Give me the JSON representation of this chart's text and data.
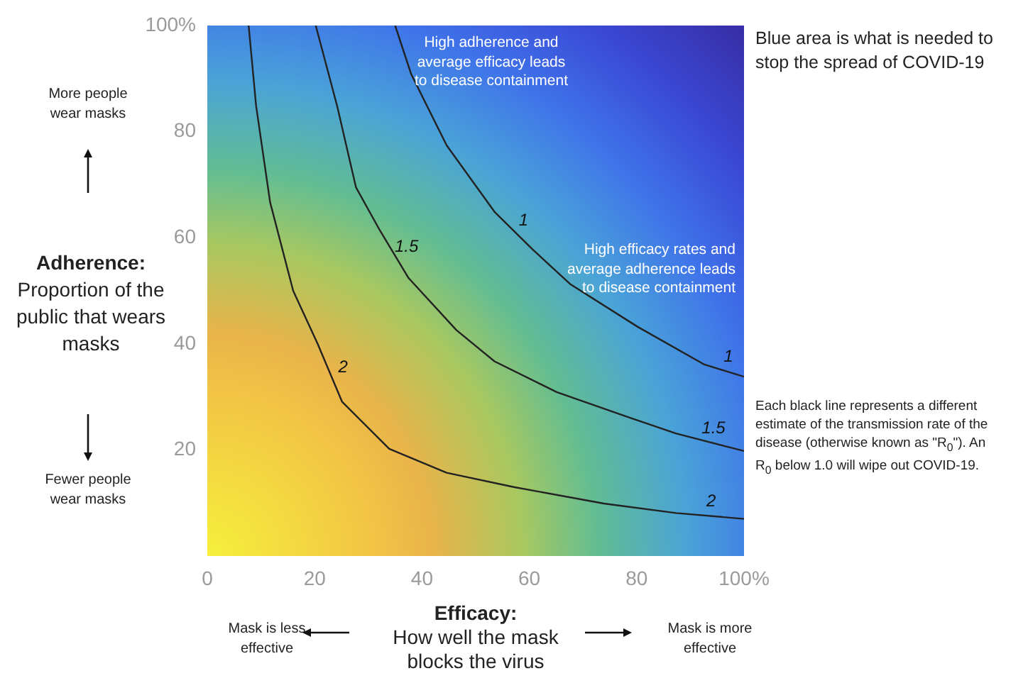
{
  "chart_data": {
    "type": "line",
    "xlabel": "Efficacy: How well the mask blocks the virus",
    "ylabel": "Adherence: Proportion of the public that wears masks",
    "xlim": [
      0,
      100
    ],
    "ylim": [
      0,
      100
    ],
    "xticks": [
      {
        "value": 0,
        "label": "0"
      },
      20,
      40,
      60,
      80,
      {
        "value": 100,
        "label": "100%"
      }
    ],
    "yticks": [
      20,
      40,
      60,
      80,
      {
        "value": 100,
        "label": "100%"
      }
    ],
    "grid": false,
    "legend": false,
    "marker": "none",
    "line_style": "solid",
    "series": [
      {
        "name": "1",
        "color": "#222222",
        "x": [
          35,
          38,
          44.6,
          53.5,
          60.6,
          67.7,
          80.2,
          92.6,
          100
        ],
        "values": [
          100,
          90.8,
          77.4,
          64.9,
          57.8,
          51.2,
          43.2,
          36.1,
          33.8
        ]
      },
      {
        "name": "1.5",
        "color": "#222222",
        "x": [
          20.2,
          24.2,
          27.7,
          32.2,
          37.5,
          46.4,
          53.5,
          65.1,
          78.4,
          87.3,
          100
        ],
        "values": [
          100,
          84.8,
          69.5,
          61.3,
          52.4,
          42.6,
          36.7,
          30.9,
          26.2,
          23.1,
          19.8
        ]
      },
      {
        "name": "2",
        "color": "#222222",
        "x": [
          7.7,
          9.1,
          11.7,
          16,
          20.6,
          25.1,
          33.9,
          44.6,
          57.1,
          73.9,
          87.3,
          100
        ],
        "values": [
          100,
          84.8,
          66.7,
          50,
          39.9,
          29.1,
          20.2,
          15.7,
          13,
          9.9,
          8.1,
          7
        ]
      }
    ],
    "annotations": [
      "More people wear masks",
      "Fewer people wear masks",
      "Mask is less effective",
      "Mask is more effective",
      "High adherence and average efficacy leads to disease containment",
      "High efficacy rates and average adherence leads to disease containment",
      "Blue area is what is needed to stop the spread of COVID-19",
      "Each black line represents a different estimate of the transmission rate of the disease (otherwise known as \"R$_{0}$\"). An R$_{0}$ below 1.0 will wipe out COVID-19."
    ]
  }
}
